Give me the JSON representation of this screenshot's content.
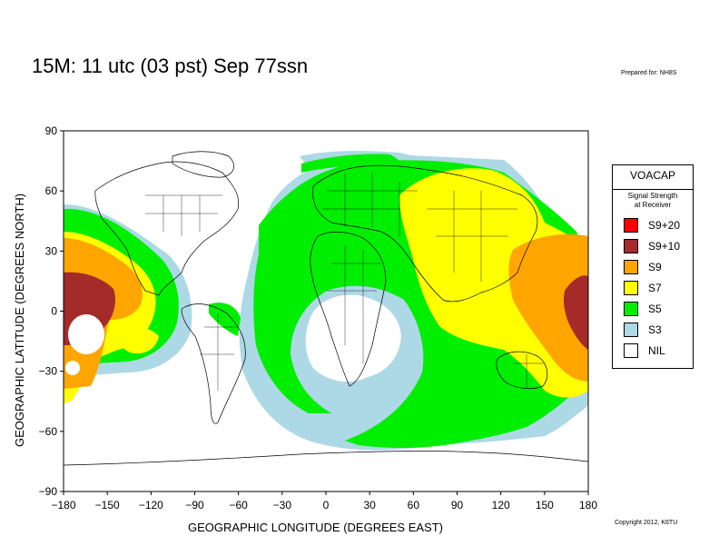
{
  "title": "15M:  11 utc (03 pst) Sep 77ssn",
  "prepared": "Prepared for: NH8S",
  "copyright": "Copyright 2012, K6TU",
  "x_axis": {
    "label": "GEOGRAPHIC LONGITUDE (DEGREES EAST)",
    "ticks": [
      "−180",
      "−150",
      "−120",
      "−90",
      "−60",
      "−30",
      "0",
      "30",
      "60",
      "90",
      "120",
      "150",
      "180"
    ],
    "range": [
      -180,
      180
    ]
  },
  "y_axis": {
    "label": "GEOGRAPHIC LATITUDE (DEGREES NORTH)",
    "ticks": [
      "90",
      "60",
      "30",
      "0",
      "−30",
      "−60",
      "−90"
    ],
    "range": [
      -90,
      90
    ]
  },
  "legend": {
    "title": "VOACAP",
    "subtitle": "Signal Strength\nat Receiver",
    "items": [
      {
        "label": "S9+20",
        "color": "#ff0000"
      },
      {
        "label": "S9+10",
        "color": "#a52a2a"
      },
      {
        "label": "S9",
        "color": "#ffa500"
      },
      {
        "label": "S7",
        "color": "#ffff00"
      },
      {
        "label": "S5",
        "color": "#00ee00"
      },
      {
        "label": "S3",
        "color": "#add8e6"
      },
      {
        "label": "NIL",
        "color": "#ffffff"
      }
    ]
  },
  "colors": {
    "s9_10": "#a52a2a",
    "s9": "#ffa500",
    "s7": "#ffff00",
    "s5": "#00ee00",
    "s3": "#add8e6",
    "nil": "#ffffff"
  }
}
